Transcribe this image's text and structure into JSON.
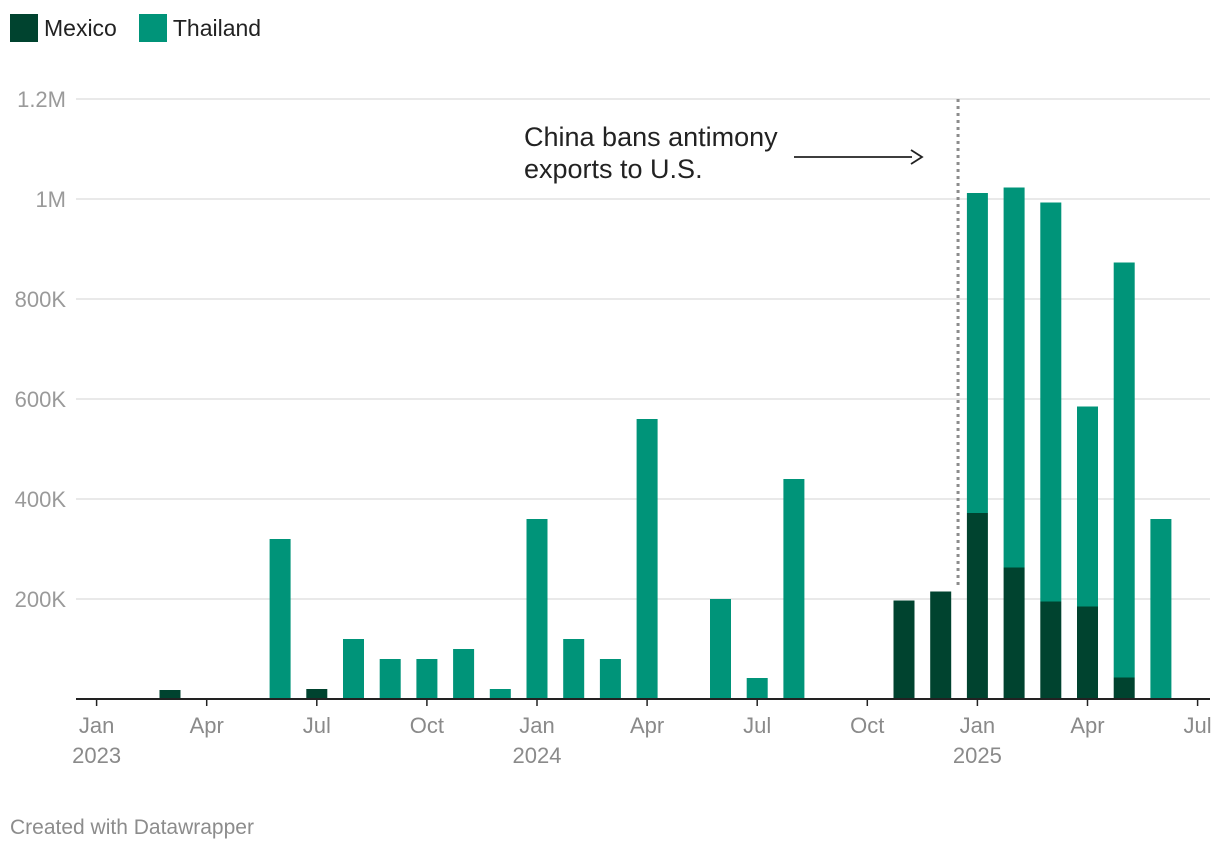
{
  "legend": {
    "mexico": {
      "label": "Mexico",
      "color": "#00432f"
    },
    "thailand": {
      "label": "Thailand",
      "color": "#009479"
    }
  },
  "chart_data": {
    "type": "bar",
    "stacked": true,
    "title": "",
    "xlabel": "",
    "ylabel": "",
    "ylim": [
      0,
      1200000
    ],
    "yticks": [
      {
        "value": 200000,
        "label": "200K"
      },
      {
        "value": 400000,
        "label": "400K"
      },
      {
        "value": 600000,
        "label": "600K"
      },
      {
        "value": 800000,
        "label": "800K"
      },
      {
        "value": 1000000,
        "label": "1M"
      },
      {
        "value": 1200000,
        "label": "1.2M"
      }
    ],
    "categories": [
      "2023-01",
      "2023-02",
      "2023-03",
      "2023-04",
      "2023-05",
      "2023-06",
      "2023-07",
      "2023-08",
      "2023-09",
      "2023-10",
      "2023-11",
      "2023-12",
      "2024-01",
      "2024-02",
      "2024-03",
      "2024-04",
      "2024-05",
      "2024-06",
      "2024-07",
      "2024-08",
      "2024-09",
      "2024-10",
      "2024-11",
      "2024-12",
      "2025-01",
      "2025-02",
      "2025-03",
      "2025-04",
      "2025-05",
      "2025-06"
    ],
    "series": [
      {
        "name": "Mexico",
        "color": "#00432f",
        "values": [
          0,
          0,
          18000,
          0,
          0,
          0,
          20000,
          0,
          0,
          0,
          0,
          0,
          0,
          0,
          0,
          0,
          0,
          0,
          0,
          0,
          0,
          0,
          197000,
          215000,
          372000,
          263000,
          195000,
          185000,
          43000,
          0
        ]
      },
      {
        "name": "Thailand",
        "color": "#009479",
        "values": [
          0,
          0,
          0,
          0,
          0,
          320000,
          0,
          120000,
          80000,
          80000,
          100000,
          20000,
          360000,
          120000,
          80000,
          560000,
          0,
          200000,
          42000,
          440000,
          0,
          0,
          0,
          0,
          640000,
          760000,
          798000,
          400000,
          830000,
          360000
        ]
      }
    ],
    "xticks": [
      {
        "index": 0,
        "label": "Jan",
        "year": "2023"
      },
      {
        "index": 3,
        "label": "Apr",
        "year": ""
      },
      {
        "index": 6,
        "label": "Jul",
        "year": ""
      },
      {
        "index": 9,
        "label": "Oct",
        "year": ""
      },
      {
        "index": 12,
        "label": "Jan",
        "year": "2024"
      },
      {
        "index": 15,
        "label": "Apr",
        "year": ""
      },
      {
        "index": 18,
        "label": "Jul",
        "year": ""
      },
      {
        "index": 21,
        "label": "Oct",
        "year": ""
      },
      {
        "index": 24,
        "label": "Jan",
        "year": "2025"
      },
      {
        "index": 27,
        "label": "Apr",
        "year": ""
      },
      {
        "index": 30,
        "label": "Jul",
        "year": ""
      }
    ],
    "annotation": {
      "line1": "China bans antimony",
      "line2": "exports to U.S.",
      "at_date": "2024-12"
    }
  },
  "footer": "Created with Datawrapper"
}
